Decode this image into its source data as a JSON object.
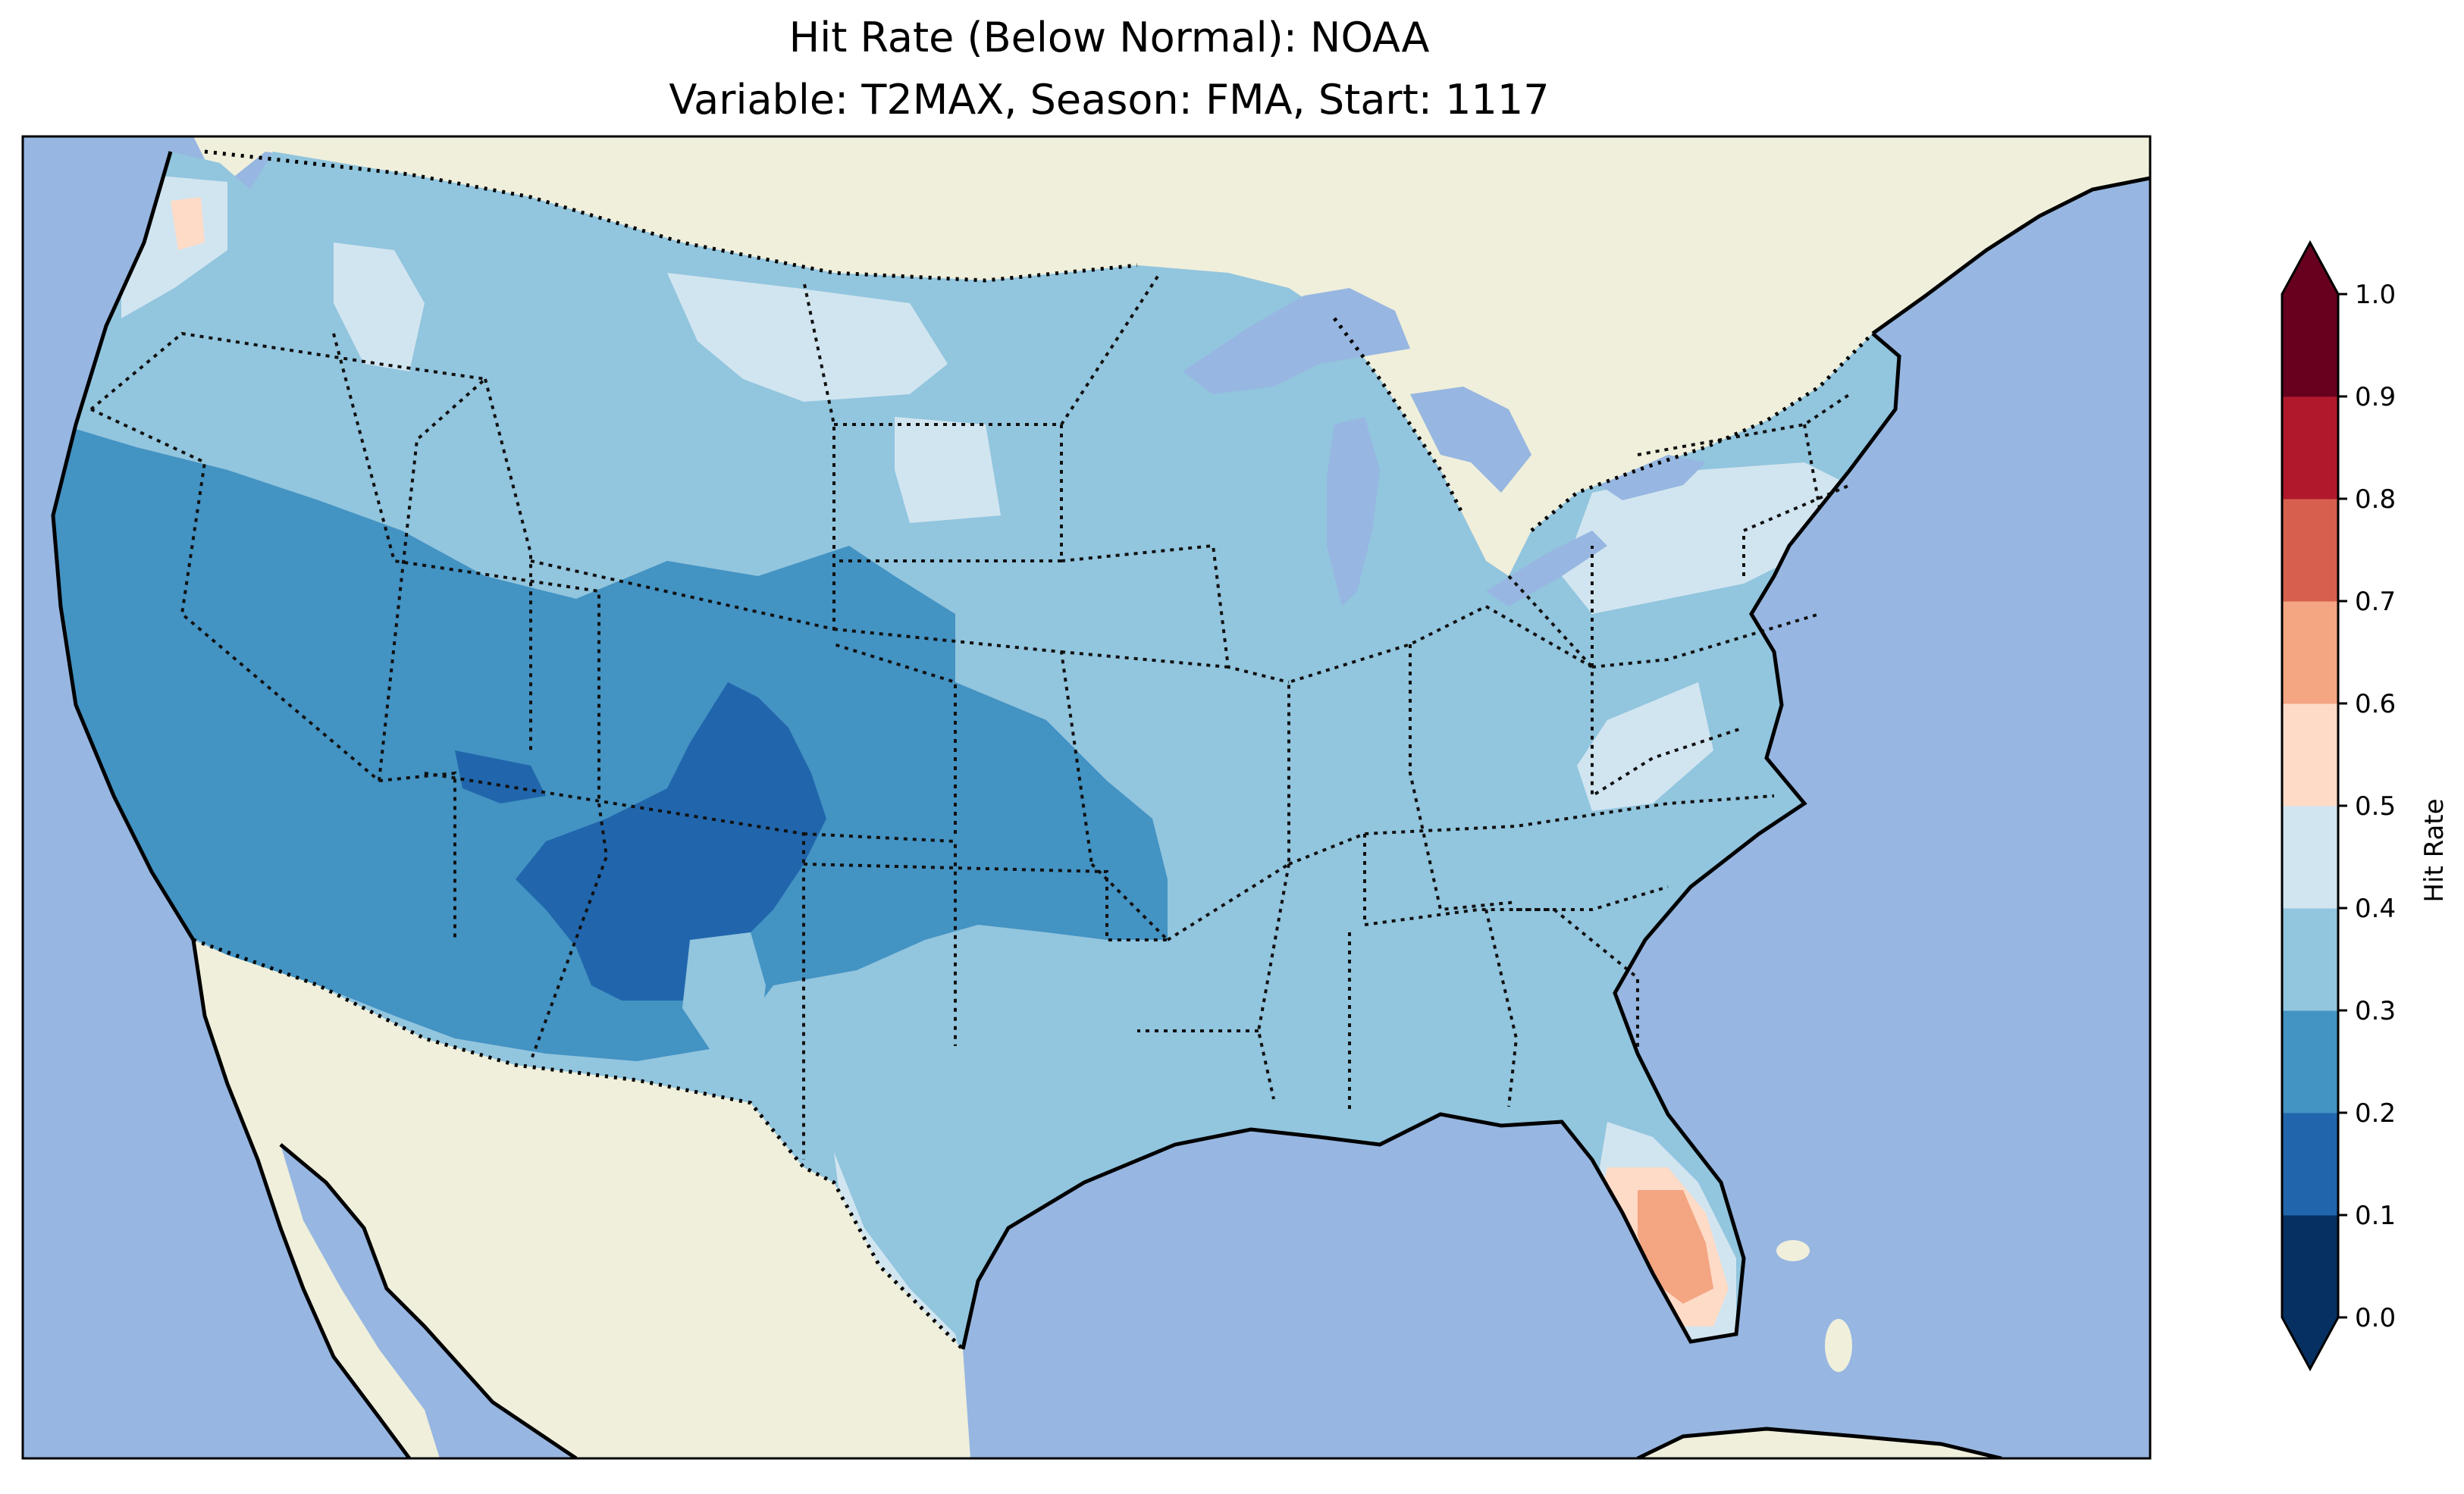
{
  "title": {
    "line1": "Hit Rate (Below Normal): NOAA",
    "line2": "Variable: T2MAX, Season: FMA, Start: 1117"
  },
  "colorbar": {
    "label": "Hit Rate",
    "ticks": [
      "0.0",
      "0.1",
      "0.2",
      "0.3",
      "0.4",
      "0.5",
      "0.6",
      "0.7",
      "0.8",
      "0.9",
      "1.0"
    ],
    "colors": [
      "#053061",
      "#2166ac",
      "#4393c3",
      "#92c5de",
      "#d1e5f0",
      "#fddbc7",
      "#f4a582",
      "#d6604d",
      "#b2182b",
      "#67001f"
    ],
    "under_color": "#053061",
    "over_color": "#67001f"
  },
  "map_colors": {
    "ocean": "#97b6e1",
    "land": "#efefdb",
    "lake": "#97b6e1"
  },
  "chart_data": {
    "type": "heatmap",
    "title": "Hit Rate (Below Normal): NOAA",
    "subtitle": "Variable: T2MAX, Season: FMA, Start: 1117",
    "colorbar_label": "Hit Rate",
    "value_range": [
      0.0,
      1.0
    ],
    "levels": [
      0.0,
      0.1,
      0.2,
      0.3,
      0.4,
      0.5,
      0.6,
      0.7,
      0.8,
      0.9,
      1.0
    ],
    "extend": "both",
    "regions": [
      {
        "region": "Pacific Northwest / Northern Rockies",
        "value": 0.35
      },
      {
        "region": "Northern Plains / Great Lakes / Midwest",
        "value": 0.35
      },
      {
        "region": "California / Great Basin / Southwest",
        "value": 0.25
      },
      {
        "region": "Four Corners / Colorado / New Mexico",
        "value": 0.15
      },
      {
        "region": "Southern Plains (Kansas / Oklahoma)",
        "value": 0.25
      },
      {
        "region": "Texas / Gulf Coast / Southeast",
        "value": 0.35
      },
      {
        "region": "Appalachians / Northeast patches",
        "value": 0.45
      },
      {
        "region": "Coastal Washington",
        "value": 0.55
      },
      {
        "region": "Central Florida",
        "value": 0.65
      }
    ]
  }
}
